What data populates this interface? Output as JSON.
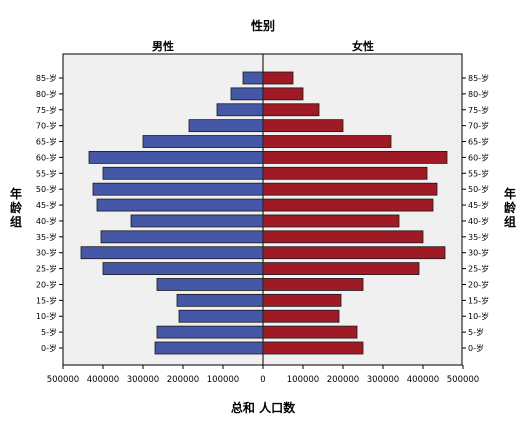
{
  "chart_data": {
    "type": "bar",
    "orientation": "horizontal-pyramid",
    "title": "性别",
    "xlabel": "总和 人口数",
    "ylabel": "年龄组",
    "xlim": [
      0,
      500000
    ],
    "x_ticks": [
      500000,
      400000,
      300000,
      200000,
      100000,
      0,
      100000,
      200000,
      300000,
      400000,
      500000
    ],
    "categories": [
      "0-岁",
      "5-岁",
      "10-岁",
      "15-岁",
      "20-岁",
      "25-岁",
      "30-岁",
      "35-岁",
      "40-岁",
      "45-岁",
      "50-岁",
      "55-岁",
      "60-岁",
      "65-岁",
      "70-岁",
      "75-岁",
      "80-岁",
      "85-岁"
    ],
    "series": [
      {
        "name": "男性",
        "color": "#4558a8",
        "values": [
          270000,
          265000,
          210000,
          215000,
          265000,
          400000,
          455000,
          405000,
          330000,
          415000,
          425000,
          400000,
          435000,
          300000,
          185000,
          115000,
          80000,
          50000
        ]
      },
      {
        "name": "女性",
        "color": "#9f1a25",
        "values": [
          250000,
          235000,
          190000,
          195000,
          250000,
          390000,
          455000,
          400000,
          340000,
          425000,
          435000,
          410000,
          460000,
          320000,
          200000,
          140000,
          100000,
          75000
        ]
      }
    ],
    "grid": false,
    "legend": "panel-headers"
  }
}
